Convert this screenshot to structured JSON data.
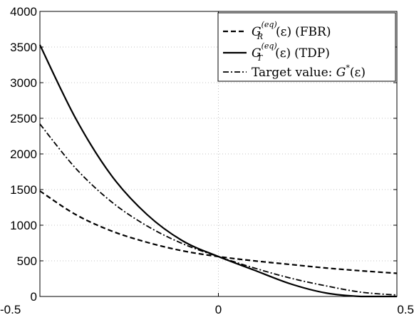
{
  "chart_data": {
    "type": "line",
    "xlim": [
      -0.5,
      0.5
    ],
    "ylim": [
      0,
      4000
    ],
    "xticks": [
      -0.5,
      0,
      0.5
    ],
    "xtick_labels": [
      "-0.5",
      "0",
      "0.5"
    ],
    "yticks": [
      0,
      500,
      1000,
      1500,
      2000,
      2500,
      3000,
      3500,
      4000
    ],
    "ytick_labels": [
      "0",
      "500",
      "1000",
      "1500",
      "2000",
      "2500",
      "3000",
      "3500",
      "4000"
    ],
    "grid": true,
    "legend_position": "top-right",
    "x": [
      -0.5,
      -0.4,
      -0.3,
      -0.2,
      -0.1,
      0.0,
      0.1,
      0.2,
      0.3,
      0.4,
      0.5
    ],
    "series": [
      {
        "legend": {
          "symbol": "G",
          "subscript": "R",
          "superscript": "(eq)",
          "argument": "(ε)",
          "suffix": "(FBR)"
        },
        "style": "dashed",
        "values": [
          1480,
          1150,
          920,
          760,
          640,
          560,
          500,
          450,
          400,
          360,
          325
        ]
      },
      {
        "legend": {
          "symbol": "G",
          "subscript": "T",
          "superscript": "(eq)",
          "argument": "(ε)",
          "suffix": "(TDP)"
        },
        "style": "solid",
        "values": [
          3530,
          2500,
          1700,
          1150,
          780,
          560,
          370,
          180,
          50,
          0,
          0
        ]
      },
      {
        "legend": {
          "prefix": "Target value: ",
          "symbol": "G",
          "superscript": "*",
          "argument": "(ε)"
        },
        "style": "dashdot",
        "values": [
          2420,
          1800,
          1330,
          990,
          740,
          560,
          400,
          260,
          150,
          60,
          20
        ]
      }
    ]
  }
}
